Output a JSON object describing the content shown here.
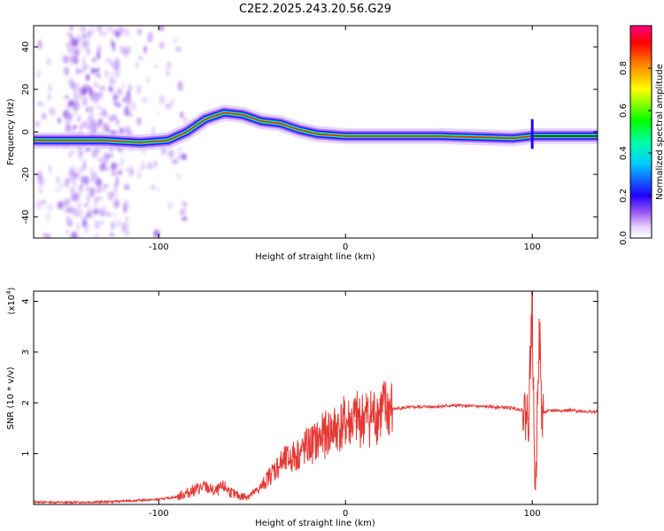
{
  "title": "C2E2.2025.243.20.56.G29",
  "chart_data": [
    {
      "type": "heatmap",
      "name": "spectrogram",
      "xlabel": "Height of straight line (km)",
      "ylabel": "Frequency (Hz)",
      "xlim": [
        -167,
        135
      ],
      "ylim": [
        -50,
        50
      ],
      "xticks": [
        -100,
        0,
        100
      ],
      "yticks": [
        -40,
        -20,
        0,
        20,
        40
      ],
      "colorbar": {
        "label": "Normalized spectral amplitude",
        "range": [
          0,
          1
        ],
        "ticks": [
          0.0,
          0.2,
          0.4,
          0.6,
          0.8
        ],
        "colormap": [
          "#ffffff",
          "#c9a3ff",
          "#7b2fe0",
          "#0000ff",
          "#00ffff",
          "#00ff00",
          "#ffff00",
          "#ff8000",
          "#ff0000",
          "#ff0066"
        ]
      },
      "ridge": {
        "description_points": [
          {
            "x": -167,
            "y": -4
          },
          {
            "x": -130,
            "y": -4
          },
          {
            "x": -110,
            "y": -5
          },
          {
            "x": -95,
            "y": -4
          },
          {
            "x": -85,
            "y": 0
          },
          {
            "x": -75,
            "y": 6
          },
          {
            "x": -65,
            "y": 9
          },
          {
            "x": -55,
            "y": 8
          },
          {
            "x": -45,
            "y": 5
          },
          {
            "x": -35,
            "y": 4
          },
          {
            "x": -25,
            "y": 1
          },
          {
            "x": -15,
            "y": -1
          },
          {
            "x": 0,
            "y": -2
          },
          {
            "x": 20,
            "y": -2
          },
          {
            "x": 50,
            "y": -2
          },
          {
            "x": 90,
            "y": -3
          },
          {
            "x": 100,
            "y": -2
          },
          {
            "x": 135,
            "y": -2
          }
        ]
      }
    },
    {
      "type": "line",
      "name": "snr",
      "xlabel": "Height of straight line (km)",
      "ylabel": "SNR (10 * v/v)",
      "yscale_label": "(x10",
      "yscale_exp": "4",
      "xlim": [
        -167,
        135
      ],
      "ylim": [
        0,
        4.2
      ],
      "xticks": [
        -100,
        0,
        100
      ],
      "yticks": [
        1,
        2,
        3,
        4
      ],
      "color": "#e53935",
      "series": [
        {
          "x": [
            -167,
            -150,
            -130,
            -110,
            -100,
            -90,
            -80,
            -75,
            -70,
            -65,
            -60,
            -55,
            -50,
            -45,
            -40,
            -35,
            -30,
            -25,
            -20,
            -15,
            -10,
            -5,
            0,
            5,
            10,
            15,
            20,
            30,
            40,
            50,
            60,
            70,
            80,
            90,
            95,
            98,
            100,
            101,
            102,
            103,
            104,
            105,
            110,
            120,
            135
          ],
          "y": [
            0.05,
            0.04,
            0.05,
            0.08,
            0.1,
            0.15,
            0.3,
            0.35,
            0.25,
            0.35,
            0.2,
            0.15,
            0.2,
            0.35,
            0.6,
            0.8,
            0.9,
            1.0,
            1.15,
            1.25,
            1.4,
            1.5,
            1.6,
            1.65,
            1.7,
            1.75,
            1.85,
            1.9,
            1.92,
            1.93,
            1.95,
            1.93,
            1.92,
            1.9,
            1.85,
            1.7,
            4.1,
            1.0,
            0.3,
            2.8,
            3.3,
            1.8,
            1.85,
            1.85,
            1.82
          ]
        }
      ]
    }
  ]
}
